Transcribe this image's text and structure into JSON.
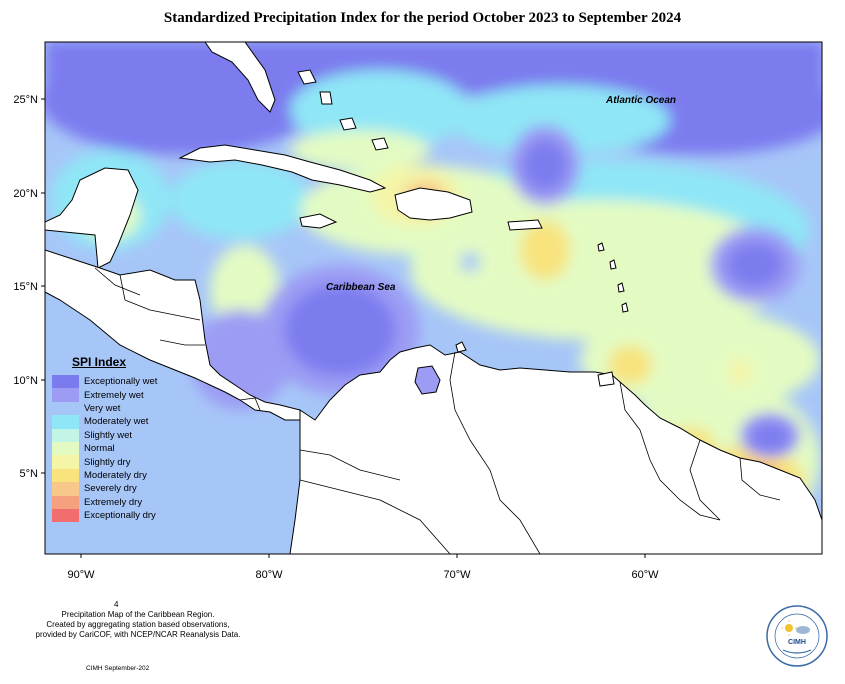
{
  "title": "Standardized Precipitation Index for the period October 2023 to September 2024",
  "labels": {
    "atlantic": "Atlantic Ocean",
    "caribbean": "Caribbean Sea"
  },
  "axes": {
    "lat_ticks": [
      "25°N",
      "20°N",
      "15°N",
      "10°N",
      "5°N"
    ],
    "lon_ticks": [
      "90°W",
      "80°W",
      "70°W",
      "60°W"
    ]
  },
  "legend": {
    "title": "SPI Index",
    "items": [
      {
        "label": "Exceptionally wet",
        "color": "#7b7bef"
      },
      {
        "label": "Extremely wet",
        "color": "#9c9cf4"
      },
      {
        "label": "Very wet",
        "color": "#a7c6f8"
      },
      {
        "label": "Moderately wet",
        "color": "#8fe6f6"
      },
      {
        "label": "Slightly wet",
        "color": "#c3f5e6"
      },
      {
        "label": "Normal",
        "color": "#e3fbc3"
      },
      {
        "label": "Slightly dry",
        "color": "#f4f5a7"
      },
      {
        "label": "Moderately dry",
        "color": "#f8e37d"
      },
      {
        "label": "Severely dry",
        "color": "#f8c78a"
      },
      {
        "label": "Extremely dry",
        "color": "#f5a07f"
      },
      {
        "label": "Exceptionally dry",
        "color": "#f26e6e"
      }
    ]
  },
  "footer": {
    "stray": "4",
    "line1": "Precipitation Map of the Caribbean Region.",
    "line2": "Created by aggregating station based observations,",
    "line3": "provided by CariCOF, with NCEP/NCAR Reanalysis Data.",
    "credit": "CIMH September-202"
  },
  "badge": {
    "name": "CIMH"
  }
}
